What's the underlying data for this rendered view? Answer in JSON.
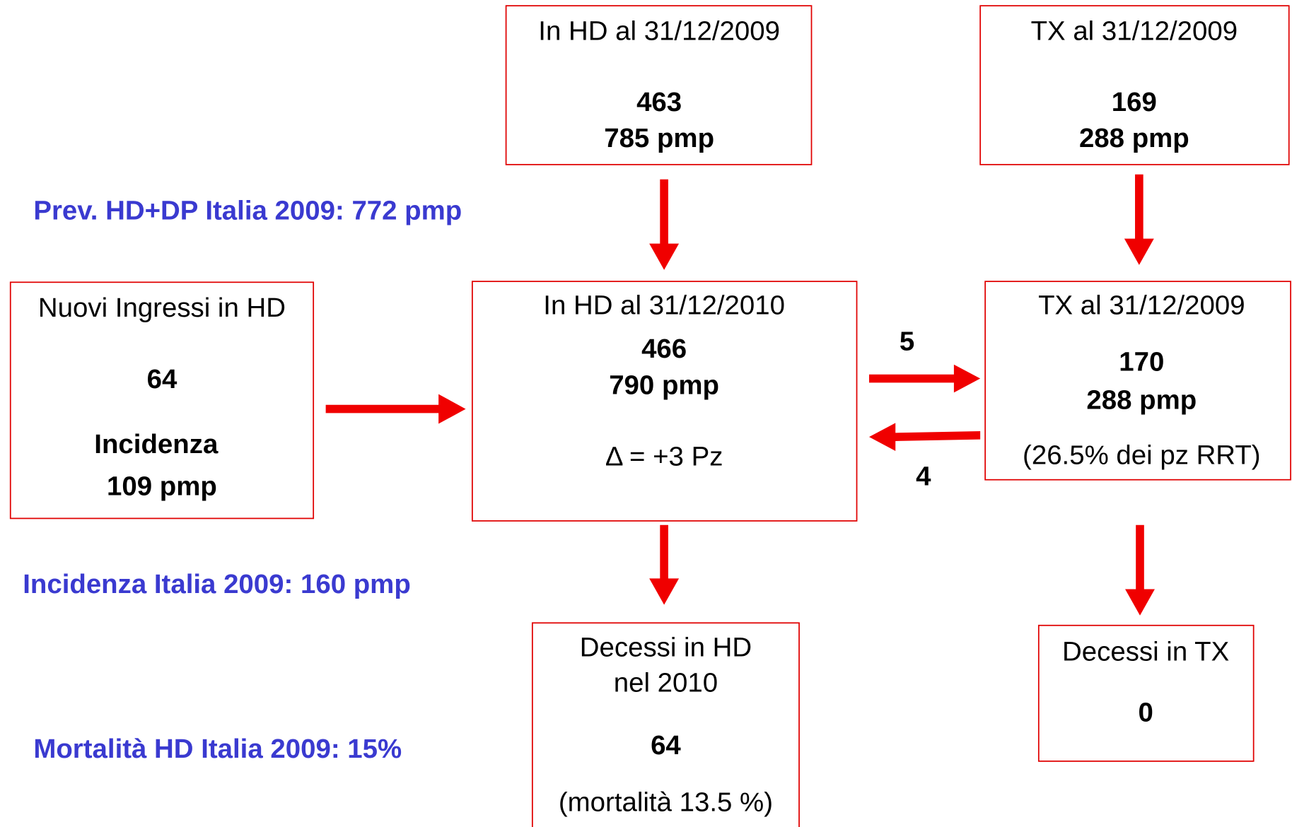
{
  "boxes": [
    {
      "lines": [
        "In HD al  31/12/2009",
        "463",
        "785 pmp"
      ]
    },
    {
      "lines": [
        "TX al  31/12/2009",
        "169",
        "288 pmp"
      ]
    },
    {
      "lines": [
        "Nuovi Ingressi in HD",
        "64",
        "Incidenza",
        "109 pmp"
      ]
    },
    {
      "lines": [
        "In HD al  31/12/2010",
        "466",
        "790 pmp",
        "Δ = +3 Pz"
      ]
    },
    {
      "lines": [
        "TX al 31/12/2009",
        "170",
        "288 pmp",
        "(26.5% dei pz RRT)"
      ]
    },
    {
      "lines": [
        "Decessi in HD",
        "nel 2010",
        "64",
        "(mortalità 13.5 %)"
      ]
    },
    {
      "lines": [
        "Decessi in TX",
        "0"
      ]
    }
  ],
  "flows": {
    "to_tx": "5",
    "from_tx": "4"
  },
  "notes": [
    "Prev. HD+DP Italia 2009: 772 pmp",
    "Incidenza Italia 2009: 160 pmp",
    "Mortalità HD Italia 2009: 15%"
  ]
}
